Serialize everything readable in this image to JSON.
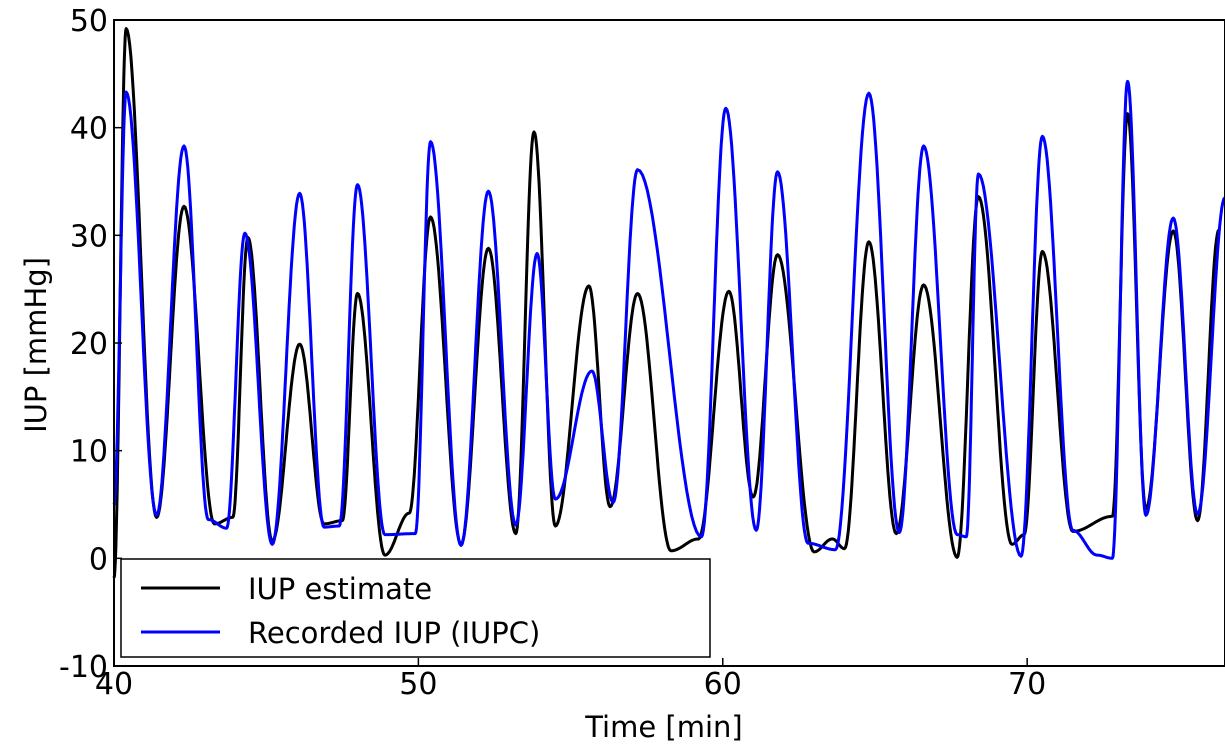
{
  "chart_data": {
    "type": "line",
    "title": "",
    "xlabel": "Time [min]",
    "ylabel": "IUP [mmHg]",
    "xlim": [
      40,
      76.5
    ],
    "ylim": [
      -10,
      50
    ],
    "xticks": [
      "40",
      "50",
      "60",
      "70"
    ],
    "yticks": [
      "-10",
      "0",
      "10",
      "20",
      "30",
      "40",
      "50"
    ],
    "grid": false,
    "legend_position": "bottom-left",
    "series": [
      {
        "name": "IUP estimate",
        "color": "#000000",
        "peaks": [
          [
            40.4,
            49.2
          ],
          [
            42.3,
            32.7
          ],
          [
            44.4,
            29.8
          ],
          [
            46.1,
            19.9
          ],
          [
            48.0,
            24.6
          ],
          [
            50.4,
            31.7
          ],
          [
            52.3,
            28.8
          ],
          [
            53.8,
            39.6
          ],
          [
            55.6,
            25.3
          ],
          [
            57.2,
            24.6
          ],
          [
            60.2,
            24.8
          ],
          [
            61.8,
            28.2
          ],
          [
            64.8,
            29.4
          ],
          [
            66.6,
            25.4
          ],
          [
            68.4,
            33.6
          ],
          [
            70.5,
            28.5
          ],
          [
            73.3,
            41.3
          ],
          [
            74.8,
            30.4
          ],
          [
            76.3,
            30.5
          ]
        ],
        "troughs": [
          [
            40.0,
            -1.8
          ],
          [
            41.4,
            3.8
          ],
          [
            43.3,
            3.2
          ],
          [
            43.9,
            3.8
          ],
          [
            45.2,
            1.6
          ],
          [
            46.9,
            3.2
          ],
          [
            47.5,
            3.5
          ],
          [
            48.9,
            0.3
          ],
          [
            49.7,
            4.2
          ],
          [
            51.4,
            1.3
          ],
          [
            53.2,
            2.3
          ],
          [
            54.5,
            3.0
          ],
          [
            56.3,
            4.8
          ],
          [
            58.3,
            0.7
          ],
          [
            59.2,
            1.8
          ],
          [
            61.0,
            5.7
          ],
          [
            63.0,
            0.6
          ],
          [
            63.6,
            1.8
          ],
          [
            64.0,
            0.9
          ],
          [
            65.7,
            2.3
          ],
          [
            67.7,
            0.1
          ],
          [
            69.5,
            1.3
          ],
          [
            69.9,
            2.2
          ],
          [
            71.5,
            2.5
          ],
          [
            72.8,
            3.9
          ],
          [
            73.9,
            4.6
          ],
          [
            75.6,
            3.5
          ]
        ]
      },
      {
        "name": "Recorded IUP (IUPC)",
        "color": "#0000ff",
        "peaks": [
          [
            40.4,
            43.3
          ],
          [
            42.3,
            38.3
          ],
          [
            44.3,
            30.2
          ],
          [
            46.1,
            33.9
          ],
          [
            48.0,
            34.7
          ],
          [
            50.4,
            38.7
          ],
          [
            52.3,
            34.1
          ],
          [
            53.9,
            28.3
          ],
          [
            55.7,
            17.4
          ],
          [
            57.2,
            36.1
          ],
          [
            60.1,
            41.8
          ],
          [
            61.8,
            35.9
          ],
          [
            64.8,
            43.2
          ],
          [
            66.6,
            38.3
          ],
          [
            68.4,
            35.7
          ],
          [
            70.5,
            39.2
          ],
          [
            73.3,
            44.3
          ],
          [
            74.8,
            31.6
          ],
          [
            76.5,
            33.5
          ]
        ],
        "troughs": [
          [
            40.0,
            5.0
          ],
          [
            41.4,
            4.0
          ],
          [
            43.1,
            3.6
          ],
          [
            43.7,
            2.8
          ],
          [
            45.2,
            1.3
          ],
          [
            46.9,
            2.9
          ],
          [
            47.4,
            3.0
          ],
          [
            48.9,
            2.2
          ],
          [
            49.9,
            2.3
          ],
          [
            51.4,
            1.2
          ],
          [
            53.2,
            3.1
          ],
          [
            54.5,
            5.5
          ],
          [
            56.4,
            5.2
          ],
          [
            59.3,
            2.0
          ],
          [
            61.1,
            2.6
          ],
          [
            62.8,
            1.4
          ],
          [
            63.7,
            0.8
          ],
          [
            65.8,
            2.4
          ],
          [
            67.7,
            2.2
          ],
          [
            68.0,
            2.0
          ],
          [
            69.8,
            0.2
          ],
          [
            71.5,
            2.6
          ],
          [
            72.3,
            0.3
          ],
          [
            72.8,
            0.0
          ],
          [
            73.9,
            4.0
          ],
          [
            75.6,
            4.1
          ]
        ]
      }
    ]
  }
}
